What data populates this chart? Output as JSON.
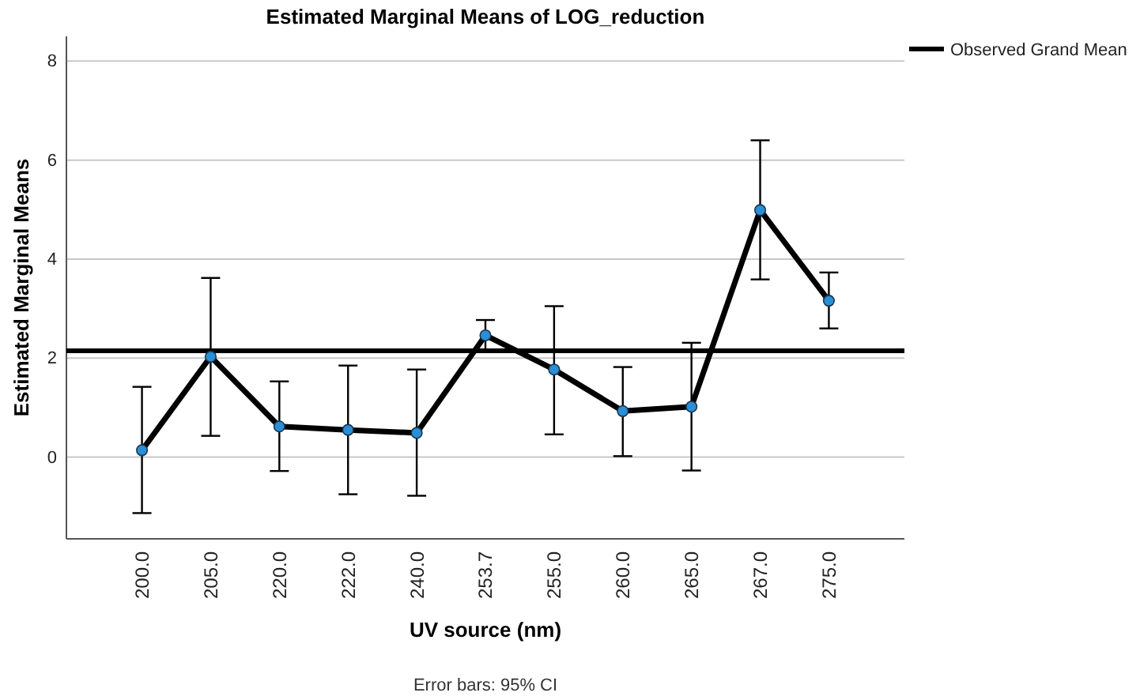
{
  "chart_data": {
    "type": "line",
    "title": "Estimated Marginal Means of LOG_reduction",
    "xlabel": "UV source (nm)",
    "ylabel": "Estimated Marginal Means",
    "categories": [
      "200.0",
      "205.0",
      "220.0",
      "222.0",
      "240.0",
      "253.7",
      "255.0",
      "260.0",
      "265.0",
      "267.0",
      "275.0"
    ],
    "series": [
      {
        "color": "#000000",
        "values": [
          0.14,
          2.03,
          0.62,
          0.55,
          0.49,
          2.46,
          1.77,
          0.93,
          1.02,
          4.99,
          3.16
        ],
        "errors": [
          [
            -1.13,
            1.42
          ],
          [
            0.43,
            3.62
          ],
          [
            -0.28,
            1.53
          ],
          [
            -0.75,
            1.85
          ],
          [
            -0.78,
            1.77
          ],
          [
            2.15,
            2.77
          ],
          [
            0.46,
            3.05
          ],
          [
            0.02,
            1.82
          ],
          [
            -0.27,
            2.31
          ],
          [
            3.59,
            6.4
          ],
          [
            2.6,
            3.73
          ]
        ]
      }
    ],
    "ylim": [
      -1.65,
      8.5
    ],
    "yticks": [
      0,
      2,
      4,
      6,
      8
    ],
    "grid": "y",
    "marker": "circle",
    "line_style": "solid",
    "legend": "top right",
    "ref_lines": [
      {
        "axis": "y",
        "value": 2.15,
        "label": "Observed Grand Mean",
        "color": "#000000"
      }
    ],
    "annotations": [
      "Error bars: 95% CI"
    ]
  }
}
